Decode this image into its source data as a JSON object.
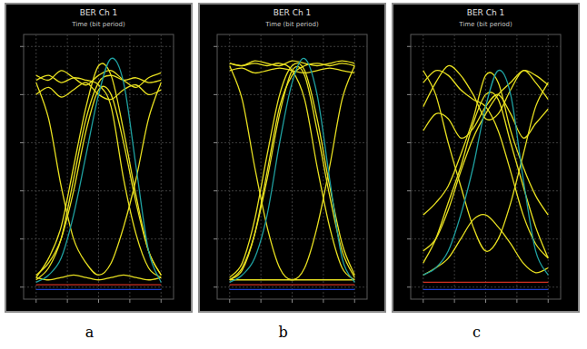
{
  "chart_data": [
    {
      "type": "line",
      "title": "BER Ch 1",
      "x_label": "Time (bit period)",
      "panel_label": "a",
      "x": [
        0,
        0.1,
        0.2,
        0.3,
        0.4,
        0.5,
        0.6,
        0.7,
        0.8,
        0.9,
        1
      ],
      "xlim": [
        -0.1,
        1.1
      ],
      "ylim": [
        -0.05,
        1.05
      ],
      "xticks": [
        0,
        0.25,
        0.5,
        0.75,
        1
      ],
      "yticks": [
        0,
        0.2,
        0.4,
        0.6,
        0.8,
        1
      ],
      "grid": true,
      "tick_labels": false,
      "series": [
        {
          "color": "#e8e020",
          "values": [
            0.85,
            0.7,
            0.42,
            0.2,
            0.1,
            0.05,
            0.1,
            0.25,
            0.45,
            0.7,
            0.85
          ]
        },
        {
          "color": "#e8e020",
          "values": [
            0.05,
            0.1,
            0.2,
            0.4,
            0.65,
            0.82,
            0.8,
            0.6,
            0.35,
            0.15,
            0.05
          ]
        },
        {
          "color": "#e8e020",
          "values": [
            0.88,
            0.86,
            0.9,
            0.87,
            0.84,
            0.88,
            0.9,
            0.86,
            0.83,
            0.87,
            0.89
          ]
        },
        {
          "color": "#e8e020",
          "values": [
            0.8,
            0.83,
            0.79,
            0.82,
            0.85,
            0.8,
            0.78,
            0.82,
            0.84,
            0.8,
            0.82
          ]
        },
        {
          "color": "#e8e020",
          "values": [
            0.04,
            0.03,
            0.04,
            0.05,
            0.04,
            0.03,
            0.04,
            0.05,
            0.04,
            0.03,
            0.04
          ]
        },
        {
          "color": "#e8e020",
          "values": [
            0.03,
            0.08,
            0.2,
            0.45,
            0.7,
            0.85,
            0.88,
            0.86,
            0.87,
            0.85,
            0.86
          ]
        },
        {
          "color": "#e8e020",
          "values": [
            0.86,
            0.88,
            0.85,
            0.87,
            0.86,
            0.84,
            0.75,
            0.45,
            0.22,
            0.08,
            0.04
          ]
        },
        {
          "color": "#e8e020",
          "values": [
            0.04,
            0.12,
            0.25,
            0.5,
            0.75,
            0.92,
            0.88,
            0.65,
            0.38,
            0.15,
            0.05
          ]
        },
        {
          "color": "#1fa0a0",
          "values": [
            0.02,
            0.05,
            0.12,
            0.3,
            0.55,
            0.8,
            0.95,
            0.85,
            0.5,
            0.15,
            0.02
          ]
        },
        {
          "color": "#d03020",
          "values": [
            0.01,
            0.01,
            0.01,
            0.01,
            0.01,
            0.01,
            0.01,
            0.01,
            0.01,
            0.01,
            0.01
          ]
        },
        {
          "color": "#2040d0",
          "values": [
            -0.01,
            -0.01,
            -0.01,
            -0.01,
            -0.01,
            -0.01,
            -0.01,
            -0.01,
            -0.01,
            -0.01,
            -0.01
          ]
        }
      ]
    },
    {
      "type": "line",
      "title": "BER Ch 1",
      "x_label": "Time (bit period)",
      "panel_label": "b",
      "x": [
        0,
        0.1,
        0.2,
        0.3,
        0.4,
        0.5,
        0.6,
        0.7,
        0.8,
        0.9,
        1
      ],
      "xlim": [
        -0.1,
        1.1
      ],
      "ylim": [
        -0.05,
        1.05
      ],
      "xticks": [
        0,
        0.25,
        0.5,
        0.75,
        1
      ],
      "yticks": [
        0,
        0.2,
        0.4,
        0.6,
        0.8,
        1
      ],
      "grid": true,
      "tick_labels": false,
      "series": [
        {
          "color": "#e8e020",
          "values": [
            0.92,
            0.78,
            0.5,
            0.25,
            0.08,
            0.03,
            0.08,
            0.25,
            0.5,
            0.78,
            0.92
          ]
        },
        {
          "color": "#e8e020",
          "values": [
            0.03,
            0.08,
            0.22,
            0.45,
            0.72,
            0.9,
            0.88,
            0.65,
            0.38,
            0.15,
            0.04
          ]
        },
        {
          "color": "#e8e020",
          "values": [
            0.93,
            0.92,
            0.94,
            0.93,
            0.92,
            0.94,
            0.93,
            0.92,
            0.93,
            0.94,
            0.93
          ]
        },
        {
          "color": "#e8e020",
          "values": [
            0.9,
            0.91,
            0.89,
            0.9,
            0.91,
            0.9,
            0.89,
            0.9,
            0.91,
            0.9,
            0.89
          ]
        },
        {
          "color": "#e8e020",
          "values": [
            0.03,
            0.03,
            0.03,
            0.03,
            0.03,
            0.03,
            0.03,
            0.03,
            0.03,
            0.03,
            0.03
          ]
        },
        {
          "color": "#e8e020",
          "values": [
            0.03,
            0.07,
            0.22,
            0.48,
            0.75,
            0.88,
            0.92,
            0.93,
            0.92,
            0.93,
            0.92
          ]
        },
        {
          "color": "#e8e020",
          "values": [
            0.93,
            0.92,
            0.93,
            0.92,
            0.93,
            0.9,
            0.78,
            0.5,
            0.25,
            0.08,
            0.03
          ]
        },
        {
          "color": "#e8e020",
          "values": [
            0.04,
            0.1,
            0.28,
            0.55,
            0.8,
            0.92,
            0.9,
            0.7,
            0.42,
            0.18,
            0.05
          ]
        },
        {
          "color": "#1fa0a0",
          "values": [
            0.02,
            0.05,
            0.12,
            0.3,
            0.6,
            0.85,
            0.95,
            0.8,
            0.45,
            0.12,
            0.02
          ]
        },
        {
          "color": "#d03020",
          "values": [
            0.01,
            0.01,
            0.01,
            0.01,
            0.01,
            0.01,
            0.01,
            0.01,
            0.01,
            0.01,
            0.01
          ]
        },
        {
          "color": "#2040d0",
          "values": [
            -0.01,
            -0.01,
            -0.01,
            -0.01,
            -0.01,
            -0.01,
            -0.01,
            -0.01,
            -0.01,
            -0.01,
            -0.01
          ]
        }
      ]
    },
    {
      "type": "line",
      "title": "BER Ch 1",
      "x_label": "Time (bit period)",
      "panel_label": "c",
      "x": [
        0,
        0.1,
        0.2,
        0.3,
        0.4,
        0.5,
        0.6,
        0.7,
        0.8,
        0.9,
        1
      ],
      "xlim": [
        -0.1,
        1.1
      ],
      "ylim": [
        -0.05,
        1.05
      ],
      "xticks": [
        0,
        0.25,
        0.5,
        0.75,
        1
      ],
      "yticks": [
        0,
        0.2,
        0.4,
        0.6,
        0.8,
        1
      ],
      "grid": true,
      "tick_labels": false,
      "series": [
        {
          "color": "#e8e020",
          "values": [
            0.9,
            0.8,
            0.6,
            0.42,
            0.25,
            0.15,
            0.2,
            0.35,
            0.55,
            0.75,
            0.85
          ]
        },
        {
          "color": "#e8e020",
          "values": [
            0.1,
            0.2,
            0.35,
            0.5,
            0.68,
            0.8,
            0.78,
            0.6,
            0.42,
            0.25,
            0.12
          ]
        },
        {
          "color": "#e8e020",
          "values": [
            0.75,
            0.85,
            0.92,
            0.88,
            0.8,
            0.7,
            0.72,
            0.82,
            0.9,
            0.85,
            0.78
          ]
        },
        {
          "color": "#e8e020",
          "values": [
            0.65,
            0.72,
            0.7,
            0.62,
            0.66,
            0.75,
            0.8,
            0.72,
            0.62,
            0.68,
            0.74
          ]
        },
        {
          "color": "#e8e020",
          "values": [
            0.05,
            0.08,
            0.12,
            0.2,
            0.28,
            0.3,
            0.25,
            0.18,
            0.1,
            0.06,
            0.08
          ]
        },
        {
          "color": "#e8e020",
          "values": [
            0.15,
            0.2,
            0.32,
            0.48,
            0.62,
            0.72,
            0.8,
            0.85,
            0.9,
            0.88,
            0.84
          ]
        },
        {
          "color": "#e8e020",
          "values": [
            0.85,
            0.9,
            0.88,
            0.82,
            0.78,
            0.75,
            0.65,
            0.48,
            0.3,
            0.18,
            0.12
          ]
        },
        {
          "color": "#e8e020",
          "values": [
            0.3,
            0.35,
            0.42,
            0.55,
            0.7,
            0.88,
            0.85,
            0.65,
            0.5,
            0.38,
            0.3
          ]
        },
        {
          "color": "#1fa0a0",
          "values": [
            0.05,
            0.08,
            0.15,
            0.3,
            0.5,
            0.75,
            0.9,
            0.8,
            0.45,
            0.15,
            0.05
          ]
        },
        {
          "color": "#d03020",
          "values": [
            0.02,
            0.02,
            0.02,
            0.02,
            0.02,
            0.02,
            0.02,
            0.02,
            0.02,
            0.02,
            0.02
          ]
        },
        {
          "color": "#2040d0",
          "values": [
            -0.01,
            -0.01,
            -0.01,
            -0.01,
            -0.01,
            -0.01,
            -0.01,
            -0.01,
            -0.01,
            -0.01,
            -0.01
          ]
        }
      ]
    }
  ]
}
